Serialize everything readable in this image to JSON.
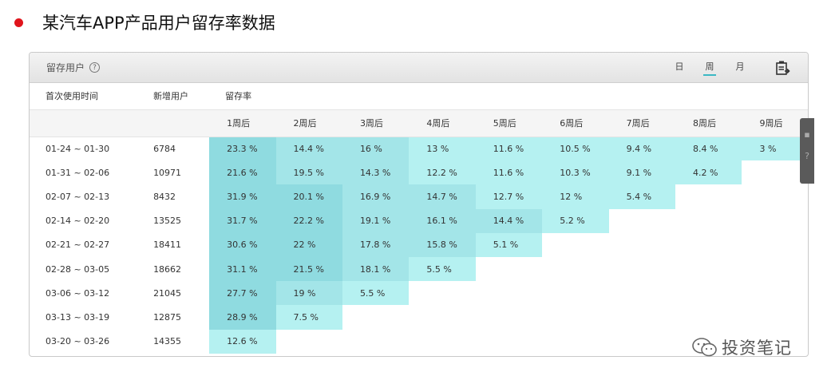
{
  "page": {
    "title": "某汽车APP产品用户留存率数据"
  },
  "panel": {
    "title": "留存用户",
    "help_glyph": "?",
    "tabs": [
      "日",
      "周",
      "月"
    ],
    "active_tab": "周"
  },
  "table": {
    "headers": {
      "first_use": "首次使用时间",
      "new_users": "新增用户",
      "retention": "留存率"
    },
    "weeks": [
      "1周后",
      "2周后",
      "3周后",
      "4周后",
      "5周后",
      "6周后",
      "7周后",
      "8周后",
      "9周后"
    ],
    "rows": [
      {
        "period": "01-24 ~ 01-30",
        "new_users": "6784",
        "rates": [
          "23.3 %",
          "14.4 %",
          "16 %",
          "13 %",
          "11.6 %",
          "10.5 %",
          "9.4 %",
          "8.4 %",
          "3 %"
        ]
      },
      {
        "period": "01-31 ~ 02-06",
        "new_users": "10971",
        "rates": [
          "21.6 %",
          "19.5 %",
          "14.3 %",
          "12.2 %",
          "11.6 %",
          "10.3 %",
          "9.1 %",
          "4.2 %"
        ]
      },
      {
        "period": "02-07 ~ 02-13",
        "new_users": "8432",
        "rates": [
          "31.9 %",
          "20.1 %",
          "16.9 %",
          "14.7 %",
          "12.7 %",
          "12 %",
          "5.4 %"
        ]
      },
      {
        "period": "02-14 ~ 02-20",
        "new_users": "13525",
        "rates": [
          "31.7 %",
          "22.2 %",
          "19.1 %",
          "16.1 %",
          "14.4 %",
          "5.2 %"
        ]
      },
      {
        "period": "02-21 ~ 02-27",
        "new_users": "18411",
        "rates": [
          "30.6 %",
          "22 %",
          "17.8 %",
          "15.8 %",
          "5.1 %"
        ]
      },
      {
        "period": "02-28 ~ 03-05",
        "new_users": "18662",
        "rates": [
          "31.1 %",
          "21.5 %",
          "18.1 %",
          "5.5 %"
        ]
      },
      {
        "period": "03-06 ~ 03-12",
        "new_users": "21045",
        "rates": [
          "27.7 %",
          "19 %",
          "5.5 %"
        ]
      },
      {
        "period": "03-13 ~ 03-19",
        "new_users": "12875",
        "rates": [
          "28.9 %",
          "7.5 %"
        ]
      },
      {
        "period": "03-20 ~ 03-26",
        "new_users": "14355",
        "rates": [
          "12.6 %"
        ]
      }
    ]
  },
  "colors": {
    "heat_light": "#b5f1f1",
    "heat_mid": "#a3e5e8",
    "heat_dark": "#8fdbe0",
    "bullet": "#e0151c"
  },
  "watermark": {
    "text": "投资笔记"
  },
  "icons": [
    "help-icon",
    "export-icon",
    "wechat-icon"
  ]
}
